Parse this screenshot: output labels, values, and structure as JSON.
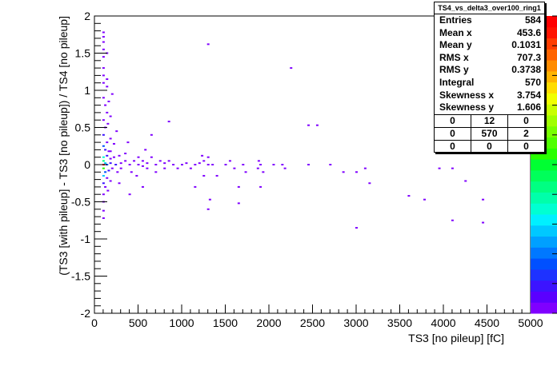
{
  "chart_data": {
    "type": "heatmap",
    "title": "",
    "xlabel": "TS3 [no pileup] [fC]",
    "ylabel": "(TS3 [with pileup] - TS3 [no pileup]) / TS4 [no pileup]",
    "xlim": [
      0,
      5000
    ],
    "ylim": [
      -2,
      2
    ],
    "x_ticks": [
      "0",
      "500",
      "1000",
      "1500",
      "2000",
      "2500",
      "3000",
      "3500",
      "4000",
      "4500",
      "5000"
    ],
    "y_ticks": [
      "2",
      "1.5",
      "1",
      "0.5",
      "0",
      "-0.5",
      "-1",
      "-1.5",
      "-2"
    ],
    "grid": false,
    "color_scale": [
      "#7f00ff",
      "#5a00ff",
      "#3c14ff",
      "#1e32ff",
      "#0050ff",
      "#0078ff",
      "#00a0ff",
      "#00c8ff",
      "#00f0ff",
      "#00ffd2",
      "#00ffaa",
      "#00ff82",
      "#00ff5a",
      "#00ff32",
      "#28ff00",
      "#50ff00",
      "#78ff00",
      "#a0ff00",
      "#c8ff00",
      "#f0ff00",
      "#ffdc00",
      "#ffb400",
      "#ff8c00",
      "#ff6400",
      "#ff3c00",
      "#ff1400",
      "#ff0000"
    ],
    "points": [
      {
        "x": 100,
        "y": 1.78,
        "v": 1
      },
      {
        "x": 100,
        "y": 1.72,
        "v": 1
      },
      {
        "x": 100,
        "y": 1.65,
        "v": 1
      },
      {
        "x": 100,
        "y": 1.55,
        "v": 1
      },
      {
        "x": 140,
        "y": 1.5,
        "v": 1
      },
      {
        "x": 100,
        "y": 1.45,
        "v": 1
      },
      {
        "x": 100,
        "y": 1.3,
        "v": 1
      },
      {
        "x": 100,
        "y": 1.2,
        "v": 1
      },
      {
        "x": 140,
        "y": 1.15,
        "v": 1
      },
      {
        "x": 100,
        "y": 1.1,
        "v": 1
      },
      {
        "x": 140,
        "y": 1.05,
        "v": 1
      },
      {
        "x": 200,
        "y": 0.95,
        "v": 1
      },
      {
        "x": 100,
        "y": 0.9,
        "v": 1
      },
      {
        "x": 160,
        "y": 0.85,
        "v": 1
      },
      {
        "x": 120,
        "y": 0.8,
        "v": 1
      },
      {
        "x": 140,
        "y": 0.7,
        "v": 1
      },
      {
        "x": 180,
        "y": 0.65,
        "v": 1
      },
      {
        "x": 100,
        "y": 0.6,
        "v": 1
      },
      {
        "x": 150,
        "y": 0.55,
        "v": 1
      },
      {
        "x": 120,
        "y": 0.5,
        "v": 1
      },
      {
        "x": 250,
        "y": 0.45,
        "v": 1
      },
      {
        "x": 100,
        "y": 0.4,
        "v": 2
      },
      {
        "x": 180,
        "y": 0.35,
        "v": 1
      },
      {
        "x": 140,
        "y": 0.3,
        "v": 1
      },
      {
        "x": 100,
        "y": 0.25,
        "v": 3
      },
      {
        "x": 220,
        "y": 0.28,
        "v": 1
      },
      {
        "x": 120,
        "y": 0.2,
        "v": 2
      },
      {
        "x": 160,
        "y": 0.18,
        "v": 1
      },
      {
        "x": 100,
        "y": 0.1,
        "v": 5
      },
      {
        "x": 140,
        "y": 0.12,
        "v": 2
      },
      {
        "x": 180,
        "y": 0.08,
        "v": 1
      },
      {
        "x": 220,
        "y": 0.1,
        "v": 1
      },
      {
        "x": 280,
        "y": 0.12,
        "v": 1
      },
      {
        "x": 100,
        "y": 0.05,
        "v": 6
      },
      {
        "x": 120,
        "y": 0.02,
        "v": 4
      },
      {
        "x": 100,
        "y": 0.0,
        "v": 12
      },
      {
        "x": 140,
        "y": 0.0,
        "v": 3
      },
      {
        "x": 180,
        "y": 0.02,
        "v": 2
      },
      {
        "x": 240,
        "y": 0.0,
        "v": 2
      },
      {
        "x": 300,
        "y": 0.02,
        "v": 1
      },
      {
        "x": 350,
        "y": 0.05,
        "v": 1
      },
      {
        "x": 400,
        "y": 0.0,
        "v": 1
      },
      {
        "x": 450,
        "y": 0.05,
        "v": 1
      },
      {
        "x": 500,
        "y": 0.0,
        "v": 1
      },
      {
        "x": 550,
        "y": -0.02,
        "v": 1
      },
      {
        "x": 600,
        "y": 0.02,
        "v": 1
      },
      {
        "x": 700,
        "y": 0.0,
        "v": 1
      },
      {
        "x": 800,
        "y": 0.02,
        "v": 1
      },
      {
        "x": 900,
        "y": 0.0,
        "v": 1
      },
      {
        "x": 100,
        "y": -0.05,
        "v": 7
      },
      {
        "x": 120,
        "y": -0.1,
        "v": 3
      },
      {
        "x": 160,
        "y": -0.08,
        "v": 2
      },
      {
        "x": 200,
        "y": -0.05,
        "v": 1
      },
      {
        "x": 260,
        "y": -0.1,
        "v": 1
      },
      {
        "x": 100,
        "y": -0.15,
        "v": 4
      },
      {
        "x": 140,
        "y": -0.18,
        "v": 1
      },
      {
        "x": 100,
        "y": -0.25,
        "v": 2
      },
      {
        "x": 180,
        "y": -0.22,
        "v": 1
      },
      {
        "x": 120,
        "y": -0.3,
        "v": 1
      },
      {
        "x": 100,
        "y": -0.4,
        "v": 1
      },
      {
        "x": 150,
        "y": -0.35,
        "v": 1
      },
      {
        "x": 100,
        "y": -0.5,
        "v": 1
      },
      {
        "x": 100,
        "y": -0.62,
        "v": 1
      },
      {
        "x": 100,
        "y": -0.72,
        "v": 1
      },
      {
        "x": 180,
        "y": 0.18,
        "v": 1
      },
      {
        "x": 300,
        "y": -0.05,
        "v": 1
      },
      {
        "x": 350,
        "y": 0.15,
        "v": 1
      },
      {
        "x": 420,
        "y": -0.1,
        "v": 1
      },
      {
        "x": 500,
        "y": 0.1,
        "v": 1
      },
      {
        "x": 480,
        "y": -0.15,
        "v": 1
      },
      {
        "x": 550,
        "y": 0.05,
        "v": 1
      },
      {
        "x": 600,
        "y": -0.05,
        "v": 1
      },
      {
        "x": 650,
        "y": 0.1,
        "v": 1
      },
      {
        "x": 700,
        "y": -0.1,
        "v": 1
      },
      {
        "x": 750,
        "y": 0.05,
        "v": 1
      },
      {
        "x": 800,
        "y": -0.05,
        "v": 1
      },
      {
        "x": 850,
        "y": 0.05,
        "v": 1
      },
      {
        "x": 950,
        "y": -0.05,
        "v": 1
      },
      {
        "x": 1000,
        "y": 0.0,
        "v": 1
      },
      {
        "x": 1050,
        "y": 0.02,
        "v": 1
      },
      {
        "x": 1100,
        "y": -0.05,
        "v": 1
      },
      {
        "x": 1150,
        "y": 0.0,
        "v": 1
      },
      {
        "x": 1200,
        "y": 0.02,
        "v": 1
      },
      {
        "x": 1250,
        "y": 0.05,
        "v": 1
      },
      {
        "x": 1300,
        "y": 0.0,
        "v": 1
      },
      {
        "x": 1350,
        "y": 0.0,
        "v": 1
      },
      {
        "x": 1500,
        "y": 0.0,
        "v": 1
      },
      {
        "x": 1550,
        "y": 0.05,
        "v": 1
      },
      {
        "x": 1600,
        "y": -0.05,
        "v": 1
      },
      {
        "x": 1700,
        "y": 0.0,
        "v": 1
      },
      {
        "x": 1900,
        "y": 0.0,
        "v": 1
      },
      {
        "x": 2050,
        "y": 0.0,
        "v": 1
      },
      {
        "x": 2150,
        "y": 0.0,
        "v": 1
      },
      {
        "x": 2450,
        "y": 0.0,
        "v": 1
      },
      {
        "x": 1930,
        "y": -0.1,
        "v": 1
      },
      {
        "x": 1880,
        "y": 0.05,
        "v": 1
      },
      {
        "x": 1730,
        "y": -0.1,
        "v": 1
      },
      {
        "x": 1870,
        "y": -0.05,
        "v": 1
      },
      {
        "x": 2180,
        "y": -0.05,
        "v": 1
      },
      {
        "x": 1300,
        "y": 1.62,
        "v": 1
      },
      {
        "x": 2250,
        "y": 1.3,
        "v": 1
      },
      {
        "x": 2450,
        "y": 0.53,
        "v": 1
      },
      {
        "x": 2550,
        "y": 0.53,
        "v": 1
      },
      {
        "x": 850,
        "y": 0.58,
        "v": 1
      },
      {
        "x": 650,
        "y": 0.4,
        "v": 1
      },
      {
        "x": 580,
        "y": 0.2,
        "v": 1
      },
      {
        "x": 380,
        "y": 0.3,
        "v": 1
      },
      {
        "x": 1300,
        "y": 0.1,
        "v": 1
      },
      {
        "x": 1230,
        "y": 0.12,
        "v": 1
      },
      {
        "x": 2700,
        "y": 0.0,
        "v": 1
      },
      {
        "x": 3000,
        "y": -0.1,
        "v": 1
      },
      {
        "x": 3100,
        "y": -0.05,
        "v": 1
      },
      {
        "x": 3150,
        "y": -0.25,
        "v": 1
      },
      {
        "x": 2850,
        "y": -0.1,
        "v": 1
      },
      {
        "x": 3950,
        "y": -0.05,
        "v": 1
      },
      {
        "x": 4250,
        "y": -0.22,
        "v": 1
      },
      {
        "x": 4100,
        "y": -0.05,
        "v": 1
      },
      {
        "x": 3600,
        "y": -0.42,
        "v": 1
      },
      {
        "x": 3780,
        "y": -0.47,
        "v": 1
      },
      {
        "x": 4450,
        "y": -0.47,
        "v": 1
      },
      {
        "x": 4100,
        "y": -0.75,
        "v": 1
      },
      {
        "x": 4450,
        "y": -0.78,
        "v": 1
      },
      {
        "x": 3000,
        "y": -0.85,
        "v": 1
      },
      {
        "x": 1650,
        "y": -0.52,
        "v": 1
      },
      {
        "x": 1320,
        "y": -0.47,
        "v": 1
      },
      {
        "x": 1300,
        "y": -0.6,
        "v": 1
      },
      {
        "x": 1150,
        "y": -0.3,
        "v": 1
      },
      {
        "x": 1650,
        "y": -0.3,
        "v": 1
      },
      {
        "x": 1900,
        "y": -0.3,
        "v": 1
      },
      {
        "x": 400,
        "y": -0.4,
        "v": 1
      },
      {
        "x": 550,
        "y": -0.3,
        "v": 1
      },
      {
        "x": 280,
        "y": -0.25,
        "v": 1
      },
      {
        "x": 1250,
        "y": -0.15,
        "v": 1
      },
      {
        "x": 1400,
        "y": -0.15,
        "v": 1
      }
    ]
  },
  "stats": {
    "title": "TS4_vs_delta3_over100_ring1",
    "rows": [
      {
        "label": "Entries",
        "value": "584"
      },
      {
        "label": "Mean x",
        "value": "453.6"
      },
      {
        "label": "Mean y",
        "value": "0.1031"
      },
      {
        "label": "RMS x",
        "value": "707.3"
      },
      {
        "label": "RMS y",
        "value": "0.3738"
      },
      {
        "label": "Integral",
        "value": "570"
      },
      {
        "label": "Skewness x",
        "value": "3.754"
      },
      {
        "label": "Skewness y",
        "value": "1.606"
      }
    ],
    "grid": [
      [
        "0",
        "12",
        "0"
      ],
      [
        "0",
        "570",
        "2"
      ],
      [
        "0",
        "0",
        "0"
      ]
    ]
  }
}
